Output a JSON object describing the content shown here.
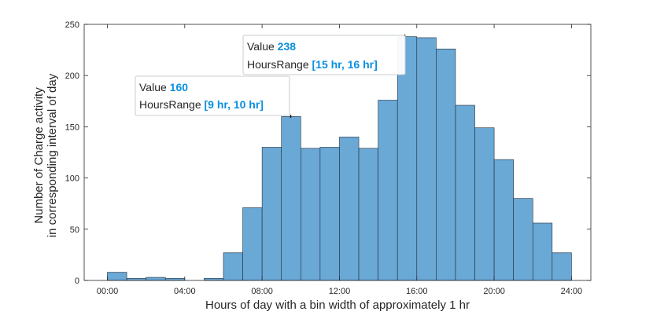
{
  "chart_data": {
    "type": "bar",
    "subtype": "histogram",
    "xlabel": "Hours of day with a bin width of approximately 1 hr",
    "ylabel_lines": [
      "Number of Charge activity",
      "in corresponding interval of day"
    ],
    "x_ticks": [
      "00:00",
      "04:00",
      "08:00",
      "12:00",
      "16:00",
      "20:00",
      "24:00"
    ],
    "x_tick_hours": [
      0,
      4,
      8,
      12,
      16,
      20,
      24
    ],
    "y_ticks": [
      "0",
      "50",
      "100",
      "150",
      "200",
      "250"
    ],
    "y_tick_values": [
      0,
      50,
      100,
      150,
      200,
      250
    ],
    "xlim": [
      -1.2,
      25
    ],
    "ylim": [
      0,
      250
    ],
    "bin_edges": [
      0,
      1,
      2,
      3,
      4,
      5,
      6,
      7,
      8,
      9,
      10,
      11,
      12,
      13,
      14,
      15,
      16,
      17,
      18,
      19,
      20,
      21,
      22,
      23,
      24
    ],
    "values": [
      8,
      2,
      3,
      2,
      0,
      2,
      27,
      71,
      130,
      160,
      129,
      130,
      140,
      129,
      176,
      238,
      237,
      226,
      171,
      149,
      118,
      80,
      56,
      27
    ],
    "bar_color": "#6aa8d6",
    "edge_color": "#1f2d3a",
    "grid": false
  },
  "datatips": [
    {
      "value_label": "Value",
      "value": "160",
      "range_label": "HoursRange",
      "range": "[9 hr, 10 hr]",
      "anchor_hour": 9.5,
      "anchor_value": 160
    },
    {
      "value_label": "Value",
      "value": "238",
      "range_label": "HoursRange",
      "range": "[15 hr, 16 hr]",
      "anchor_hour": 15.5,
      "anchor_value": 238
    }
  ],
  "colors": {
    "accent": "#0b8fe0",
    "axis": "#262626",
    "tip_border": "#c8cdd2"
  }
}
